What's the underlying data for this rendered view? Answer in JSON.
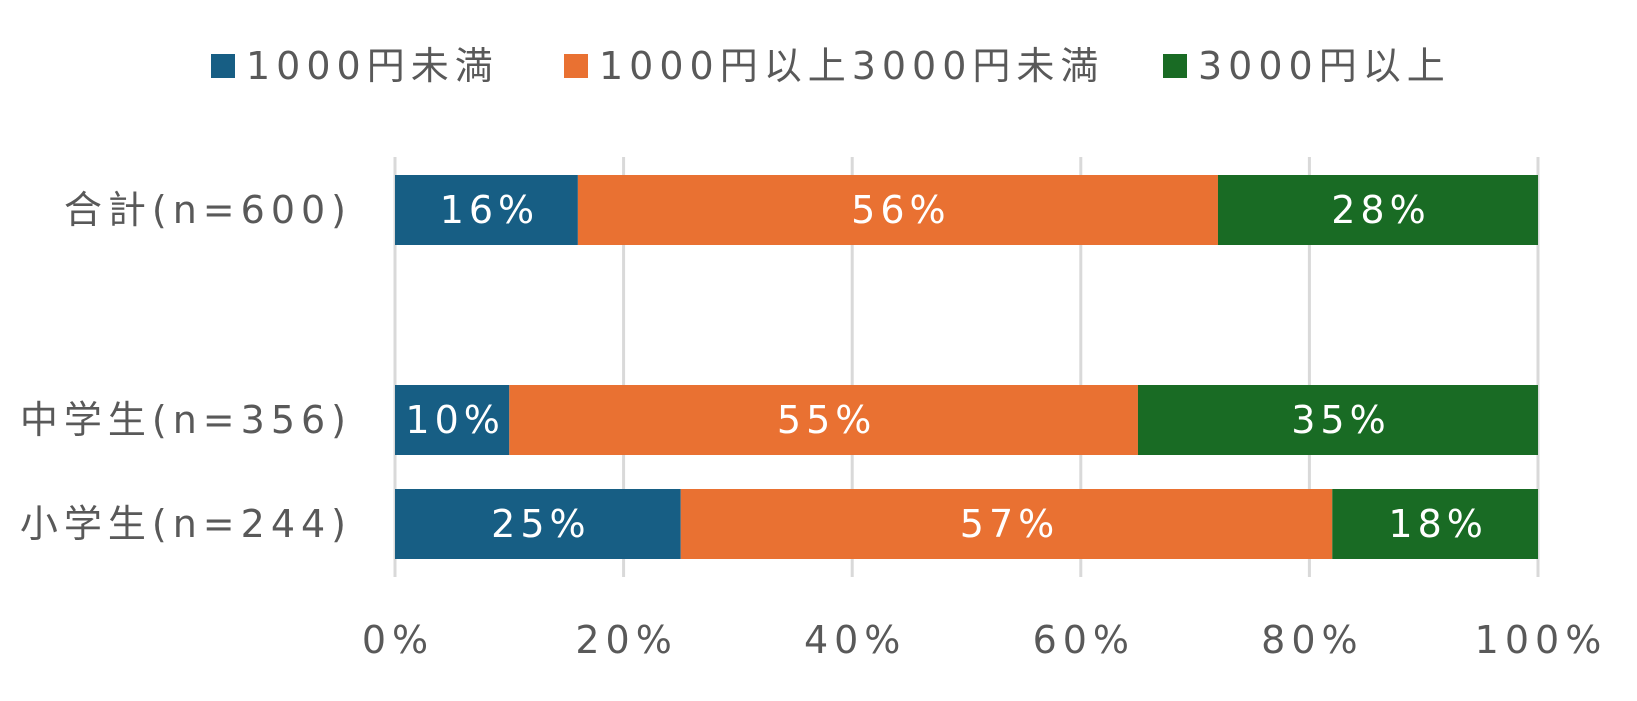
{
  "chart_data": {
    "type": "bar",
    "orientation": "horizontal",
    "stacked": "percent",
    "categories": [
      "合計(n=600)",
      "中学生(n=356)",
      "小学生(n=244)"
    ],
    "series": [
      {
        "name": "1000円未満",
        "color": "#175E84",
        "values": [
          16,
          10,
          25
        ],
        "labels": [
          "16%",
          "10%",
          "25%"
        ]
      },
      {
        "name": "1000円以上3000円未満",
        "color": "#E97132",
        "values": [
          56,
          55,
          57
        ],
        "labels": [
          "56%",
          "55%",
          "57%"
        ]
      },
      {
        "name": "3000円以上",
        "color": "#196B24",
        "values": [
          28,
          35,
          18
        ],
        "labels": [
          "28%",
          "35%",
          "18%"
        ]
      }
    ],
    "xlim": [
      0,
      100
    ],
    "xticks": [
      0,
      20,
      40,
      60,
      80,
      100
    ],
    "xtick_labels": [
      "0%",
      "20%",
      "40%",
      "60%",
      "80%",
      "100%"
    ],
    "grid": true,
    "legend": "top"
  }
}
